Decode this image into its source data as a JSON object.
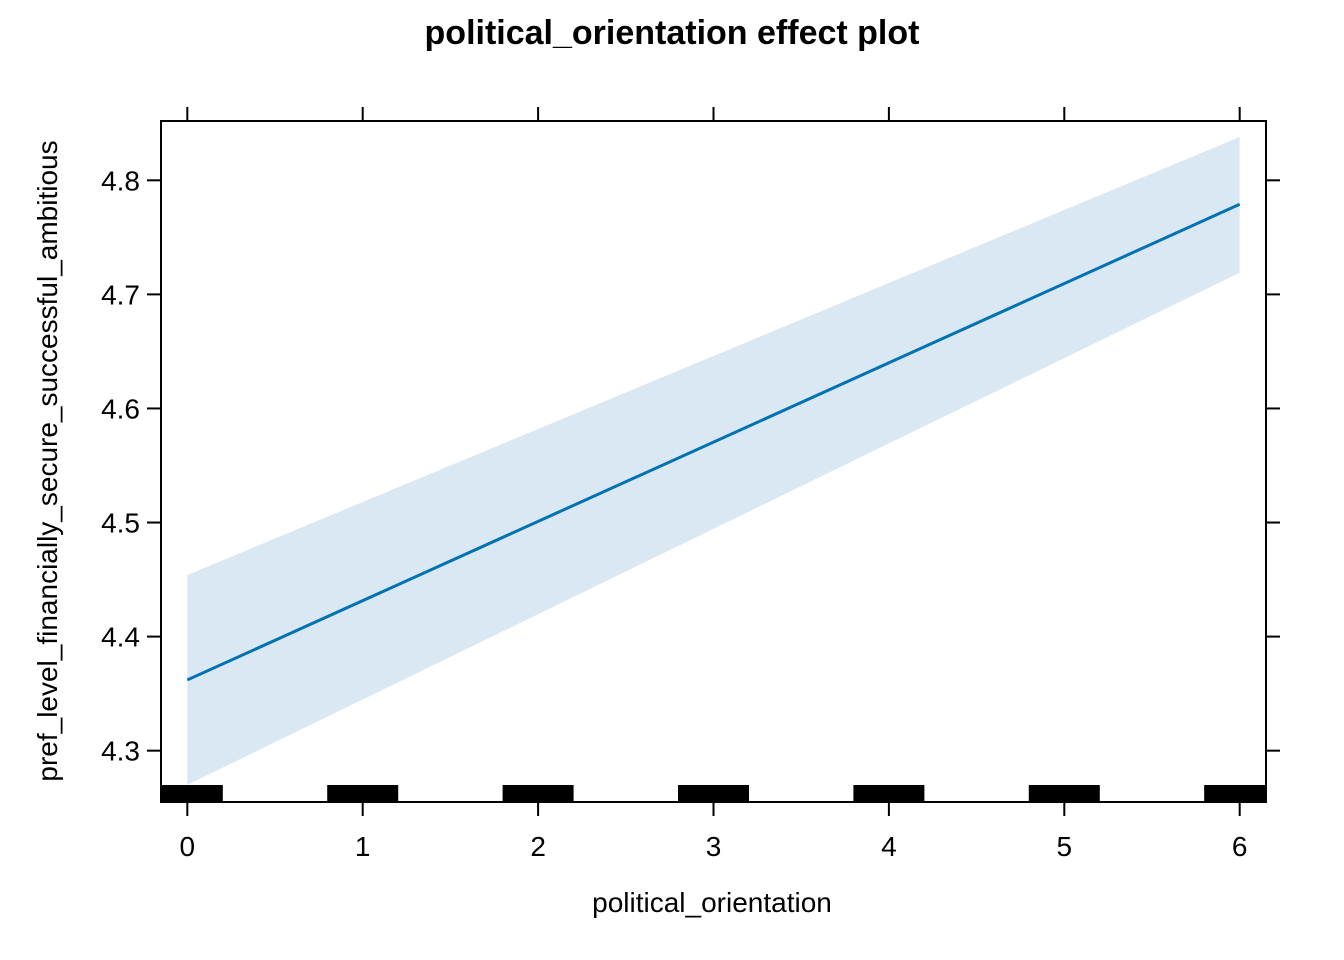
{
  "chart_data": {
    "type": "line",
    "title": "political_orientation effect plot",
    "xlabel": "political_orientation",
    "ylabel": "pref_level_financially_secure_successful_ambitious",
    "xlim": [
      -0.15,
      6.15
    ],
    "ylim": [
      4.255,
      4.852
    ],
    "x_ticks": [
      0,
      1,
      2,
      3,
      4,
      5,
      6
    ],
    "x_tick_labels": [
      "0",
      "1",
      "2",
      "3",
      "4",
      "5",
      "6"
    ],
    "y_ticks": [
      4.3,
      4.4,
      4.5,
      4.6,
      4.7,
      4.8
    ],
    "y_tick_labels": [
      "4.3",
      "4.4",
      "4.5",
      "4.6",
      "4.7",
      "4.8"
    ],
    "grid": false,
    "series": [
      {
        "x": [
          0,
          6
        ],
        "y": [
          4.362,
          4.779
        ],
        "lower": [
          4.27,
          4.719
        ],
        "upper": [
          4.454,
          4.838
        ]
      }
    ],
    "rug_x": [
      0,
      1,
      2,
      3,
      4,
      5,
      6
    ],
    "colors": {
      "line": "#0072B2",
      "band": "#DAE8F4",
      "frame": "#000000"
    }
  }
}
